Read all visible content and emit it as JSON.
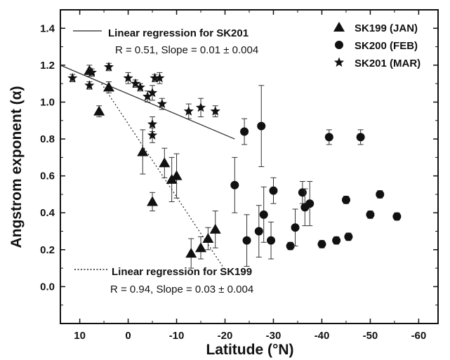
{
  "chart_data": {
    "type": "scatter",
    "xlabel": "Latitude (°N)",
    "ylabel": "Angstrom exponent (α)",
    "xlim": [
      14,
      -64
    ],
    "ylim": [
      -0.2,
      1.5
    ],
    "x_reversed": true,
    "xticks": [
      10,
      0,
      -10,
      -20,
      -30,
      -40,
      -50,
      -60
    ],
    "yticks": [
      0.0,
      0.2,
      0.4,
      0.6,
      0.8,
      1.0,
      1.2,
      1.4
    ],
    "ytick_labels": [
      "0.0",
      "0.2",
      "0.4",
      "0.6",
      "0.8",
      "1.0",
      "1.2",
      "1.4"
    ],
    "grid": false,
    "legend": "top-right",
    "series": [
      {
        "name": "SK199 (JAN)",
        "marker": "triangle",
        "points": [
          {
            "x": 8,
            "y": 1.17,
            "err": 0.03
          },
          {
            "x": 6,
            "y": 0.95,
            "err": 0.03
          },
          {
            "x": 4,
            "y": 1.08,
            "err": 0.03
          },
          {
            "x": -3,
            "y": 0.73,
            "err": 0.12
          },
          {
            "x": -5,
            "y": 0.46,
            "err": 0.05
          },
          {
            "x": -7.5,
            "y": 0.67,
            "err": 0.08
          },
          {
            "x": -9,
            "y": 0.58,
            "err": 0.12
          },
          {
            "x": -10,
            "y": 0.6,
            "err": 0.12
          },
          {
            "x": -13,
            "y": 0.18,
            "err": 0.08
          },
          {
            "x": -15,
            "y": 0.21,
            "err": 0.06
          },
          {
            "x": -16.5,
            "y": 0.26,
            "err": 0.06
          },
          {
            "x": -18,
            "y": 0.31,
            "err": 0.1
          }
        ]
      },
      {
        "name": "SK200 (FEB)",
        "marker": "circle",
        "points": [
          {
            "x": -22,
            "y": 0.55,
            "err": 0.15
          },
          {
            "x": -24,
            "y": 0.84,
            "err": 0.07
          },
          {
            "x": -24.5,
            "y": 0.25,
            "err": 0.14
          },
          {
            "x": -27,
            "y": 0.3,
            "err": 0.14
          },
          {
            "x": -27.5,
            "y": 0.87,
            "err": 0.22
          },
          {
            "x": -28,
            "y": 0.39,
            "err": 0.15
          },
          {
            "x": -29.5,
            "y": 0.25,
            "err": 0.1
          },
          {
            "x": -30,
            "y": 0.52,
            "err": 0.07
          },
          {
            "x": -33.5,
            "y": 0.22,
            "err": 0.02
          },
          {
            "x": -34.5,
            "y": 0.32,
            "err": 0.1
          },
          {
            "x": -36,
            "y": 0.51,
            "err": 0.06
          },
          {
            "x": -36.5,
            "y": 0.43,
            "err": 0.1
          },
          {
            "x": -37.5,
            "y": 0.45,
            "err": 0.12
          },
          {
            "x": -40,
            "y": 0.23,
            "err": 0.02
          },
          {
            "x": -41.5,
            "y": 0.81,
            "err": 0.04
          },
          {
            "x": -43,
            "y": 0.25,
            "err": 0.02
          },
          {
            "x": -45,
            "y": 0.47,
            "err": 0.02
          },
          {
            "x": -45.5,
            "y": 0.27,
            "err": 0.02
          },
          {
            "x": -48,
            "y": 0.81,
            "err": 0.04
          },
          {
            "x": -50,
            "y": 0.39,
            "err": 0.02
          },
          {
            "x": -52,
            "y": 0.5,
            "err": 0.02
          },
          {
            "x": -55.5,
            "y": 0.38,
            "err": 0.02
          }
        ]
      },
      {
        "name": "SK201 (MAR)",
        "marker": "star",
        "points": [
          {
            "x": 11.5,
            "y": 1.13,
            "err": 0.02
          },
          {
            "x": 8,
            "y": 1.09,
            "err": 0.02
          },
          {
            "x": 7.5,
            "y": 1.16,
            "err": 0.02
          },
          {
            "x": 4,
            "y": 1.19,
            "err": 0.02
          },
          {
            "x": 0,
            "y": 1.13,
            "err": 0.03
          },
          {
            "x": -1.5,
            "y": 1.1,
            "err": 0.02
          },
          {
            "x": -2.5,
            "y": 1.08,
            "err": 0.02
          },
          {
            "x": -4,
            "y": 1.03,
            "err": 0.03
          },
          {
            "x": -5,
            "y": 1.05,
            "err": 0.04
          },
          {
            "x": -5,
            "y": 0.88,
            "err": 0.04
          },
          {
            "x": -5,
            "y": 0.82,
            "err": 0.04
          },
          {
            "x": -5.5,
            "y": 1.13,
            "err": 0.02
          },
          {
            "x": -6.5,
            "y": 1.13,
            "err": 0.03
          },
          {
            "x": -7,
            "y": 0.99,
            "err": 0.03
          },
          {
            "x": -12.5,
            "y": 0.95,
            "err": 0.04
          },
          {
            "x": -15,
            "y": 0.97,
            "err": 0.05
          },
          {
            "x": -18,
            "y": 0.95,
            "err": 0.03
          }
        ]
      }
    ],
    "regressions": [
      {
        "name": "Linear regression for SK201",
        "style": "solid",
        "from": [
          14,
          1.2
        ],
        "to": [
          -22,
          0.8
        ],
        "label": "Linear regression for SK201",
        "stats": "R = 0.51, Slope = 0.01 ± 0.004"
      },
      {
        "name": "Linear regression for SK199",
        "style": "dotted",
        "from": [
          5.5,
          1.1
        ],
        "to": [
          -20,
          0.09
        ],
        "label": "Linear regression for SK199",
        "stats": "R = 0.94, Slope = 0.03 ± 0.004"
      }
    ]
  }
}
